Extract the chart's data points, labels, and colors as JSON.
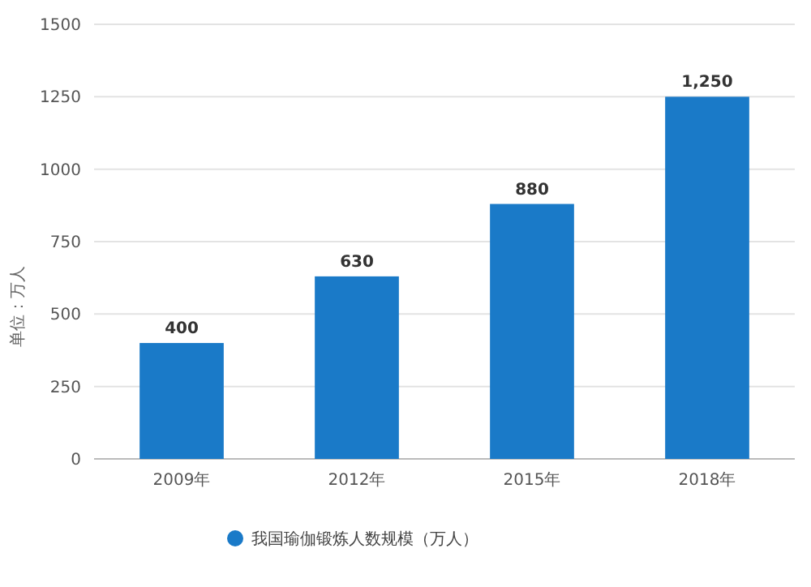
{
  "chart_data": {
    "type": "bar",
    "ylabel": "单位：万人",
    "categories": [
      "2009年",
      "2012年",
      "2015年",
      "2018年"
    ],
    "series": [
      {
        "name": "我国瑜伽锻炼人数规模（万人）",
        "color": "#1a7ac8",
        "values": [
          400,
          630,
          880,
          1250
        ],
        "value_labels": [
          "400",
          "630",
          "880",
          "1,250"
        ]
      }
    ],
    "ylim": [
      0,
      1500
    ],
    "yticks": [
      0,
      250,
      500,
      750,
      1000,
      1250,
      1500
    ],
    "grid": "y",
    "legend": "bottom",
    "marker": "circle"
  }
}
